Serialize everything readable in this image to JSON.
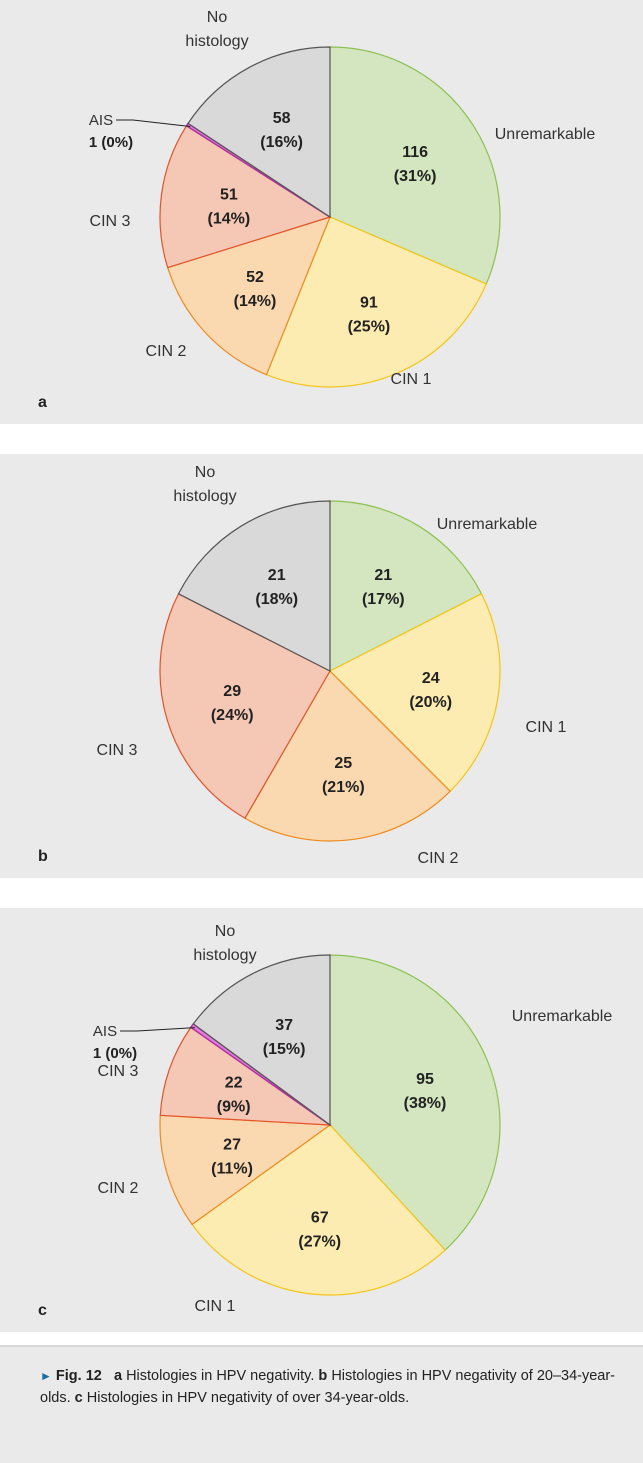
{
  "chart_data": [
    {
      "type": "pie",
      "panel": "a",
      "slices": [
        {
          "label": "Unremarkable",
          "value": 116,
          "pct": "31%",
          "fill": "#d4e6bf",
          "stroke": "#8cc153"
        },
        {
          "label": "CIN 1",
          "value": 91,
          "pct": "25%",
          "fill": "#fdecb1",
          "stroke": "#f5c518"
        },
        {
          "label": "CIN 2",
          "value": 52,
          "pct": "14%",
          "fill": "#fbd9b0",
          "stroke": "#ef8a1e"
        },
        {
          "label": "CIN 3",
          "value": 51,
          "pct": "14%",
          "fill": "#f4c8b4",
          "stroke": "#e2542a"
        },
        {
          "label": "AIS",
          "value": 1,
          "pct": "0%",
          "fill": "#e47be0",
          "stroke": "#b0329e"
        },
        {
          "label": "No histology",
          "value": 58,
          "pct": "16%",
          "fill": "#d9d9da",
          "stroke": "#555555"
        }
      ]
    },
    {
      "type": "pie",
      "panel": "b",
      "slices": [
        {
          "label": "Unremarkable",
          "value": 21,
          "pct": "17%",
          "fill": "#d4e6bf",
          "stroke": "#8cc153"
        },
        {
          "label": "CIN 1",
          "value": 24,
          "pct": "20%",
          "fill": "#fdecb1",
          "stroke": "#f5c518"
        },
        {
          "label": "CIN 2",
          "value": 25,
          "pct": "21%",
          "fill": "#fbd9b0",
          "stroke": "#ef8a1e"
        },
        {
          "label": "CIN 3",
          "value": 29,
          "pct": "24%",
          "fill": "#f4c8b4",
          "stroke": "#e2542a"
        },
        {
          "label": "No histology",
          "value": 21,
          "pct": "18%",
          "fill": "#d9d9da",
          "stroke": "#555555"
        }
      ]
    },
    {
      "type": "pie",
      "panel": "c",
      "slices": [
        {
          "label": "Unremarkable",
          "value": 95,
          "pct": "38%",
          "fill": "#d4e6bf",
          "stroke": "#8cc153"
        },
        {
          "label": "CIN 1",
          "value": 67,
          "pct": "27%",
          "fill": "#fdecb1",
          "stroke": "#f5c518"
        },
        {
          "label": "CIN 2",
          "value": 27,
          "pct": "11%",
          "fill": "#fbd9b0",
          "stroke": "#ef8a1e"
        },
        {
          "label": "CIN 3",
          "value": 22,
          "pct": "9%",
          "fill": "#f4c8b4",
          "stroke": "#e2542a"
        },
        {
          "label": "AIS",
          "value": 1,
          "pct": "0%",
          "fill": "#e47be0",
          "stroke": "#b0329e"
        },
        {
          "label": "No histology",
          "value": 37,
          "pct": "15%",
          "fill": "#d9d9da",
          "stroke": "#555555"
        }
      ]
    }
  ],
  "panel_letters": [
    "a",
    "b",
    "c"
  ],
  "caption": {
    "fig_label": "Fig. 12",
    "a_letter": "a",
    "a_text": "Histologies in HPV negativity.",
    "b_letter": "b",
    "b_text": "Histologies in HPV negativity of 20–34-year-olds.",
    "c_letter": "c",
    "c_text": "Histologies in HPV negativity of over 34-year-olds."
  }
}
